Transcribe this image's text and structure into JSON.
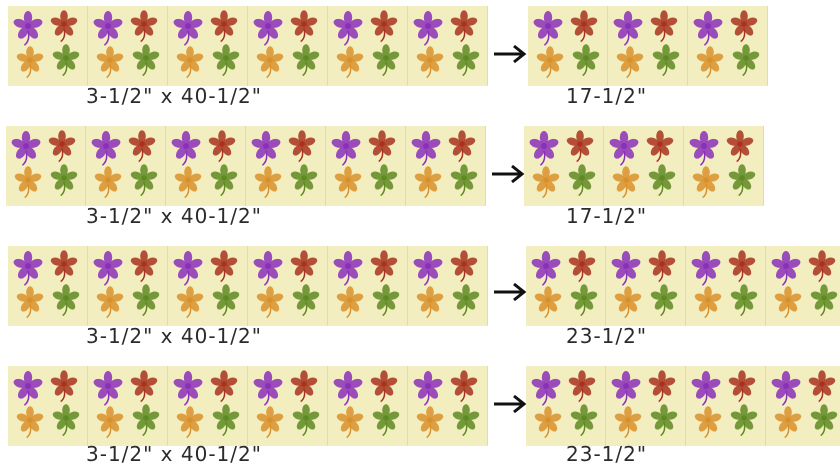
{
  "rows": [
    {
      "cut_label": "3-1/2\" x 40-1/2\"",
      "result_label": "17-1/2\""
    },
    {
      "cut_label": "3-1/2\" x 40-1/2\"",
      "result_label": "17-1/2\""
    },
    {
      "cut_label": "3-1/2\" x 40-1/2\"",
      "result_label": "23-1/2\""
    },
    {
      "cut_label": "3-1/2\" x 40-1/2\"",
      "result_label": "23-1/2\""
    }
  ],
  "colors": {
    "fabric_background": "#f3eebf",
    "flower_purple": "#8a2fb8",
    "flower_red": "#a8321f",
    "flower_orange": "#d8902a",
    "flower_green": "#5e8a22",
    "arrow": "#111111",
    "label_text": "#2b2b2b"
  },
  "icons": {
    "tile": "floral-fabric-tile",
    "arrow": "right-arrow-icon"
  }
}
